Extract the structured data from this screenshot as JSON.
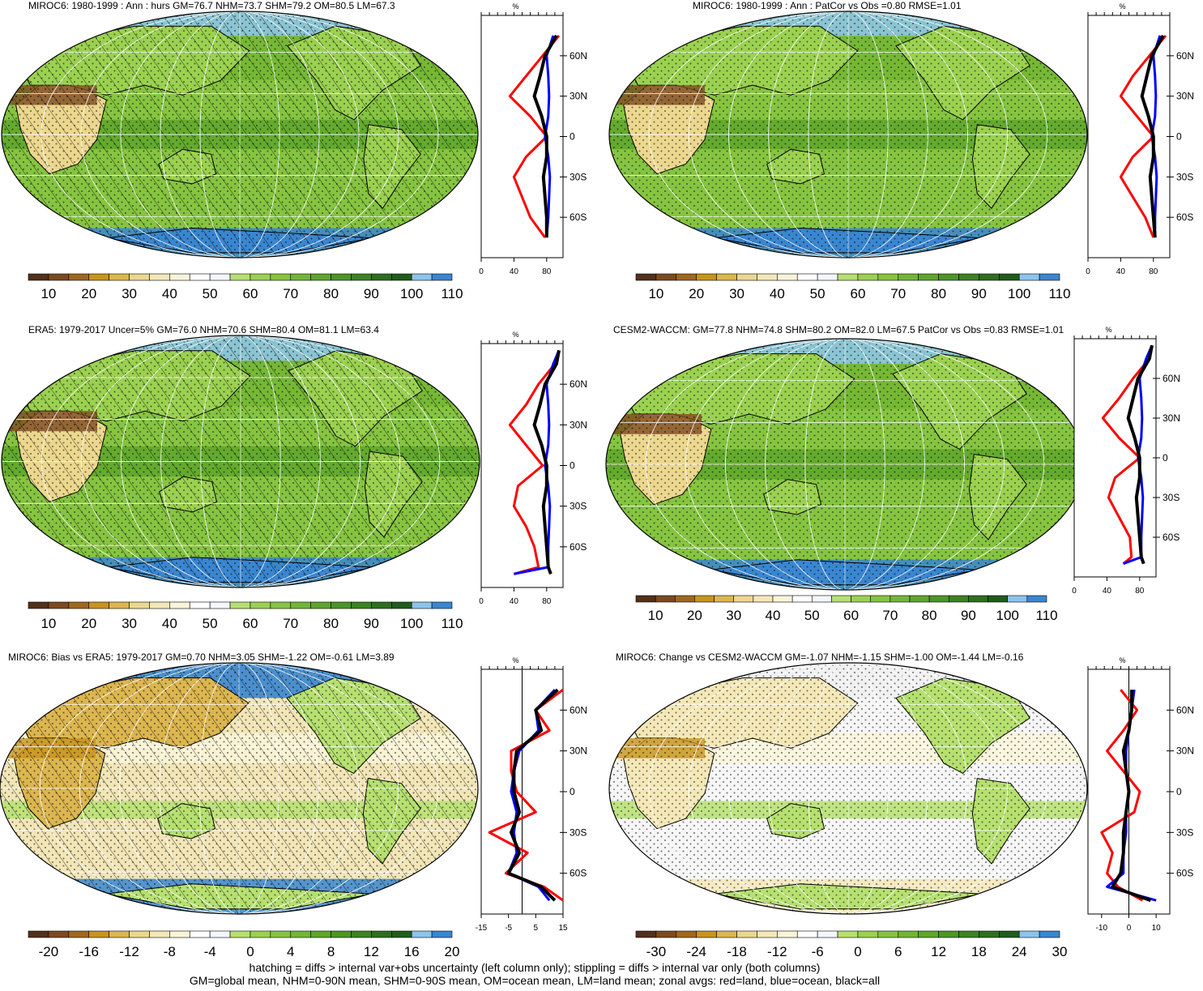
{
  "figure": {
    "footer": [
      "hatching = diffs > internal var+obs uncertainty (left column only); stippling = diffs > internal var only (both columns)",
      "GM=global mean, NHM=0-90N mean, SHM=0-90S mean, OM=ocean mean, LM=land mean; zonal avgs: red=land, blue=ocean, black=all"
    ],
    "colors": {
      "land": "#ff0000",
      "ocean": "#0000ff",
      "all": "#000000",
      "coast": "#000000",
      "grid": "#ffffff"
    }
  },
  "chart_data": [
    {
      "type": "heatmap",
      "title": "MIROC6: 1980-1999 : Ann : hurs GM=76.7 NHM=73.7 SHM=79.2 OM=80.5 LM=67.3",
      "colorbar": {
        "labels": [
          "10",
          "20",
          "30",
          "40",
          "50",
          "60",
          "70",
          "80",
          "90",
          "100",
          "110"
        ],
        "colors": [
          "#54301a",
          "#7d4a1f",
          "#a0681e",
          "#c8941e",
          "#dcb650",
          "#ecd78f",
          "#f4e8b8",
          "#faf4d8",
          "#ffffff",
          "#f4f7ff",
          "#b6e070",
          "#9bd150",
          "#86c441",
          "#73b634",
          "#5ea62b",
          "#4c9626",
          "#3c8322",
          "#2e6f1f",
          "#215c1c",
          "#8cc4ec",
          "#3a86d0"
        ]
      },
      "profile": {
        "xlabel": "%",
        "xlim": [
          0,
          100
        ],
        "xticks": [
          "0",
          "40",
          "80"
        ],
        "ylim": [
          -90,
          90
        ],
        "yticks": [
          "60N",
          "30N",
          "0",
          "30S",
          "60S"
        ],
        "lat": [
          -75,
          -60,
          -45,
          -30,
          -15,
          0,
          15,
          30,
          45,
          60,
          75
        ],
        "land": [
          78,
          60,
          50,
          40,
          55,
          80,
          60,
          35,
          55,
          75,
          95
        ],
        "ocean": [
          80,
          82,
          83,
          84,
          82,
          78,
          82,
          83,
          82,
          80,
          88
        ],
        "all": [
          80,
          80,
          78,
          76,
          80,
          80,
          74,
          65,
          72,
          78,
          92
        ]
      }
    },
    {
      "type": "heatmap",
      "title": "MIROC6: 1980-1999 : Ann : PatCor vs Obs =0.80 RMSE=1.01",
      "colorbar": {
        "labels": [
          "10",
          "20",
          "30",
          "40",
          "50",
          "60",
          "70",
          "80",
          "90",
          "100",
          "110"
        ],
        "colors": [
          "#54301a",
          "#7d4a1f",
          "#a0681e",
          "#c8941e",
          "#dcb650",
          "#ecd78f",
          "#f4e8b8",
          "#faf4d8",
          "#ffffff",
          "#f4f7ff",
          "#b6e070",
          "#9bd150",
          "#86c441",
          "#73b634",
          "#5ea62b",
          "#4c9626",
          "#3c8322",
          "#2e6f1f",
          "#215c1c",
          "#8cc4ec",
          "#3a86d0"
        ]
      },
      "profile": {
        "xlabel": "%",
        "xlim": [
          0,
          100
        ],
        "xticks": [
          "0",
          "40",
          "80"
        ],
        "ylim": [
          -90,
          90
        ],
        "yticks": [
          "60N",
          "30N",
          "0",
          "30S",
          "60S"
        ],
        "lat": [
          -75,
          -60,
          -45,
          -30,
          -15,
          0,
          15,
          30,
          45,
          60,
          75
        ],
        "land": [
          80,
          70,
          55,
          40,
          55,
          80,
          60,
          40,
          55,
          75,
          95
        ],
        "ocean": [
          82,
          82,
          83,
          84,
          82,
          78,
          82,
          83,
          82,
          80,
          88
        ],
        "all": [
          82,
          80,
          78,
          76,
          80,
          80,
          74,
          66,
          72,
          78,
          92
        ]
      }
    },
    {
      "type": "heatmap",
      "title": "ERA5: 1979-2017 Uncer=5% GM=76.0 NHM=70.6 SHM=80.4 OM=81.1 LM=63.4",
      "colorbar": {
        "labels": [
          "10",
          "20",
          "30",
          "40",
          "50",
          "60",
          "70",
          "80",
          "90",
          "100",
          "110"
        ],
        "colors": [
          "#54301a",
          "#7d4a1f",
          "#a0681e",
          "#c8941e",
          "#dcb650",
          "#ecd78f",
          "#f4e8b8",
          "#faf4d8",
          "#ffffff",
          "#f4f7ff",
          "#b6e070",
          "#9bd150",
          "#86c441",
          "#73b634",
          "#5ea62b",
          "#4c9626",
          "#3c8322",
          "#2e6f1f",
          "#215c1c",
          "#8cc4ec",
          "#3a86d0"
        ]
      },
      "profile": {
        "xlabel": "%",
        "xlim": [
          0,
          100
        ],
        "xticks": [
          "0",
          "40",
          "80"
        ],
        "ylim": [
          -90,
          90
        ],
        "yticks": [
          "60N",
          "30N",
          "0",
          "30S",
          "60S"
        ],
        "lat": [
          -80,
          -75,
          -60,
          -45,
          -30,
          -15,
          0,
          15,
          30,
          45,
          60,
          75,
          85
        ],
        "land": [
          40,
          70,
          65,
          55,
          40,
          45,
          75,
          55,
          35,
          55,
          70,
          90,
          95
        ],
        "ocean": [
          40,
          82,
          82,
          83,
          84,
          82,
          78,
          82,
          83,
          82,
          80,
          88,
          95
        ],
        "all": [
          85,
          82,
          80,
          78,
          76,
          80,
          80,
          74,
          65,
          72,
          78,
          92,
          95
        ]
      }
    },
    {
      "type": "heatmap",
      "title": "CESM2-WACCM: GM=77.8 NHM=74.8 SHM=80.2 OM=82.0 LM=67.5 PatCor vs Obs =0.83 RMSE=1.01",
      "colorbar": {
        "labels": [
          "10",
          "20",
          "30",
          "40",
          "50",
          "60",
          "70",
          "80",
          "90",
          "100",
          "110"
        ],
        "colors": [
          "#54301a",
          "#7d4a1f",
          "#a0681e",
          "#c8941e",
          "#dcb650",
          "#ecd78f",
          "#f4e8b8",
          "#faf4d8",
          "#ffffff",
          "#f4f7ff",
          "#b6e070",
          "#9bd150",
          "#86c441",
          "#73b634",
          "#5ea62b",
          "#4c9626",
          "#3c8322",
          "#2e6f1f",
          "#215c1c",
          "#8cc4ec",
          "#3a86d0"
        ]
      },
      "profile": {
        "xlabel": "%",
        "xlim": [
          0,
          100
        ],
        "xticks": [
          "0",
          "40",
          "80"
        ],
        "ylim": [
          -90,
          90
        ],
        "yticks": [
          "60N",
          "30N",
          "0",
          "30S",
          "60S"
        ],
        "lat": [
          -80,
          -75,
          -60,
          -45,
          -30,
          -15,
          0,
          15,
          30,
          45,
          60,
          75,
          85
        ],
        "land": [
          60,
          70,
          68,
          55,
          42,
          50,
          80,
          55,
          35,
          55,
          72,
          92,
          95
        ],
        "ocean": [
          60,
          82,
          82,
          83,
          84,
          82,
          78,
          82,
          83,
          82,
          80,
          88,
          95
        ],
        "all": [
          85,
          82,
          80,
          78,
          76,
          80,
          80,
          74,
          66,
          72,
          78,
          92,
          95
        ]
      }
    },
    {
      "type": "heatmap",
      "title": "MIROC6: Bias vs ERA5: 1979-2017 GM=0.70 NHM=3.05 SHM=-1.22 OM=-0.61 LM=3.89",
      "colorbar": {
        "labels": [
          "-20",
          "-16",
          "-12",
          "-8",
          "-4",
          "0",
          "4",
          "8",
          "12",
          "16",
          "20"
        ],
        "colors": [
          "#54301a",
          "#7d4a1f",
          "#a0681e",
          "#c8941e",
          "#dcb650",
          "#ecd78f",
          "#f4e8b8",
          "#faf4d8",
          "#ffffff",
          "#f4f7ff",
          "#b6e070",
          "#9bd150",
          "#86c441",
          "#73b634",
          "#5ea62b",
          "#4c9626",
          "#3c8322",
          "#2e6f1f",
          "#215c1c",
          "#8cc4ec",
          "#3a86d0"
        ]
      },
      "profile": {
        "xlabel": "%",
        "xlim": [
          -15,
          15
        ],
        "xticks": [
          "-15",
          "-5",
          "5",
          "15"
        ],
        "ylim": [
          -90,
          90
        ],
        "yticks": [
          "60N",
          "30N",
          "0",
          "30S",
          "60S"
        ],
        "lat": [
          -80,
          -70,
          -60,
          -45,
          -30,
          -15,
          0,
          15,
          30,
          45,
          60,
          75
        ],
        "land": [
          15,
          8,
          -6,
          2,
          -12,
          5,
          -2,
          -4,
          -4,
          10,
          5,
          15
        ],
        "ocean": [
          10,
          6,
          -5,
          -2,
          -3,
          -2,
          -4,
          -3,
          -1,
          6,
          5,
          12
        ],
        "all": [
          12,
          7,
          -5,
          -1,
          -4,
          -1,
          -3,
          -3,
          -2,
          7,
          5,
          13
        ]
      }
    },
    {
      "type": "heatmap",
      "title": "MIROC6: Change vs CESM2-WACCM GM=-1.07 NHM=-1.15 SHM=-1.00 OM=-1.44 LM=-0.16",
      "colorbar": {
        "labels": [
          "-30",
          "-24",
          "-18",
          "-12",
          "-6",
          "0",
          "6",
          "12",
          "18",
          "24",
          "30"
        ],
        "colors": [
          "#54301a",
          "#7d4a1f",
          "#a0681e",
          "#c8941e",
          "#dcb650",
          "#ecd78f",
          "#f4e8b8",
          "#faf4d8",
          "#ffffff",
          "#f4f7ff",
          "#b6e070",
          "#9bd150",
          "#86c441",
          "#73b634",
          "#5ea62b",
          "#4c9626",
          "#3c8322",
          "#2e6f1f",
          "#215c1c",
          "#8cc4ec",
          "#3a86d0"
        ]
      },
      "profile": {
        "xlabel": "%",
        "xlim": [
          -15,
          15
        ],
        "xticks": [
          "-10",
          "0",
          "10"
        ],
        "ylim": [
          -90,
          90
        ],
        "yticks": [
          "60N",
          "30N",
          "0",
          "30S",
          "60S"
        ],
        "lat": [
          -80,
          -70,
          -60,
          -45,
          -30,
          -15,
          0,
          15,
          30,
          45,
          60,
          75
        ],
        "land": [
          5,
          -4,
          -8,
          -6,
          -10,
          2,
          4,
          -2,
          -8,
          -2,
          3,
          -3
        ],
        "ocean": [
          10,
          -8,
          -2,
          -2,
          -1,
          -1,
          0,
          -1,
          -1,
          0,
          1,
          2
        ],
        "all": [
          8,
          -6,
          -3,
          -2,
          -2,
          -1,
          0,
          -1,
          -2,
          0,
          1,
          1
        ]
      }
    }
  ]
}
